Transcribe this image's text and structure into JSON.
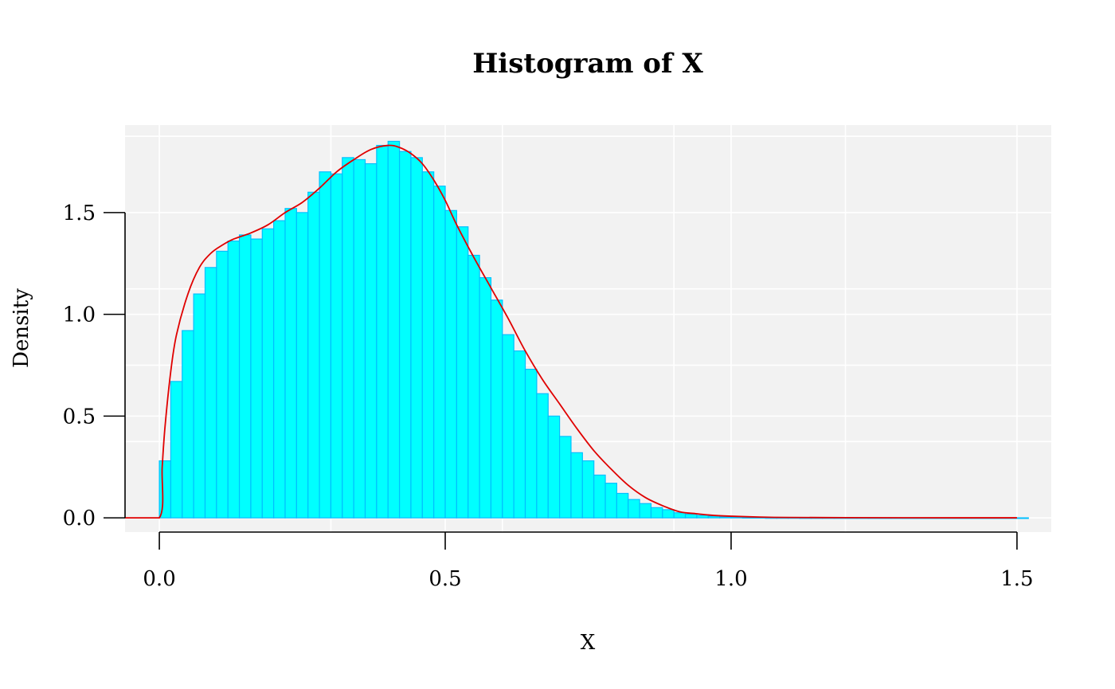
{
  "chart_data": {
    "type": "bar",
    "subtype": "histogram",
    "title": "Histogram of X",
    "xlabel": "X",
    "ylabel": "Density",
    "xlim": [
      -0.06,
      1.56
    ],
    "ylim": [
      -0.07,
      1.93
    ],
    "x_ticks": [
      0.0,
      0.5,
      1.0,
      1.5
    ],
    "x_tick_labels": [
      "0.0",
      "0.5",
      "1.0",
      "1.5"
    ],
    "y_ticks": [
      0.0,
      0.5,
      1.0,
      1.5
    ],
    "y_tick_labels": [
      "0.0",
      "0.5",
      "1.0",
      "1.5"
    ],
    "x_minor_grid": [
      0.3,
      0.6,
      0.9,
      1.2
    ],
    "y_minor_grid": [
      0.375,
      0.75,
      1.125,
      1.5,
      1.875
    ],
    "grid": true,
    "panel_background": "#f2f2f2",
    "bin_width": 0.02,
    "bin_start": 0.0,
    "bar_fill": "#00ffff",
    "bar_border": "#00bfff",
    "curve_color": "#e00000",
    "bar_values": [
      0.28,
      0.67,
      0.92,
      1.1,
      1.23,
      1.31,
      1.36,
      1.39,
      1.37,
      1.42,
      1.46,
      1.52,
      1.5,
      1.6,
      1.7,
      1.69,
      1.77,
      1.76,
      1.74,
      1.83,
      1.85,
      1.8,
      1.77,
      1.7,
      1.63,
      1.51,
      1.43,
      1.29,
      1.18,
      1.07,
      0.9,
      0.82,
      0.73,
      0.61,
      0.5,
      0.4,
      0.32,
      0.28,
      0.21,
      0.17,
      0.12,
      0.09,
      0.07,
      0.05,
      0.04,
      0.025,
      0.018,
      0.012,
      0.008,
      0.005,
      0.003,
      0.002,
      0.002,
      0.001,
      0.001,
      0.001,
      0.0005,
      0.0005,
      0.0005,
      0.0004,
      0.0003,
      0.0003,
      0.0002,
      0.0002,
      0.0002,
      0.0001,
      0.0001,
      0.0001,
      0.0001,
      0.0001,
      0.0001,
      0.0001,
      0.0001,
      0.0001,
      0.0001,
      0.0001
    ],
    "density_curve": {
      "x": [
        -0.06,
        0.0,
        0.005,
        0.01,
        0.02,
        0.03,
        0.05,
        0.07,
        0.09,
        0.11,
        0.13,
        0.16,
        0.19,
        0.22,
        0.25,
        0.28,
        0.31,
        0.34,
        0.37,
        0.4,
        0.42,
        0.44,
        0.46,
        0.48,
        0.5,
        0.52,
        0.55,
        0.58,
        0.61,
        0.64,
        0.67,
        0.7,
        0.73,
        0.76,
        0.79,
        0.82,
        0.85,
        0.88,
        0.91,
        0.94,
        0.97,
        1.0,
        1.05,
        1.1,
        1.2,
        1.3,
        1.4,
        1.5
      ],
      "y": [
        0.0,
        0.0,
        0.25,
        0.45,
        0.72,
        0.9,
        1.1,
        1.23,
        1.3,
        1.34,
        1.37,
        1.4,
        1.44,
        1.5,
        1.55,
        1.62,
        1.7,
        1.76,
        1.81,
        1.83,
        1.82,
        1.79,
        1.74,
        1.66,
        1.56,
        1.44,
        1.28,
        1.13,
        0.98,
        0.82,
        0.68,
        0.56,
        0.44,
        0.33,
        0.24,
        0.16,
        0.1,
        0.06,
        0.03,
        0.02,
        0.012,
        0.008,
        0.004,
        0.002,
        0.001,
        0.0005,
        0.0003,
        0.0002
      ]
    }
  }
}
